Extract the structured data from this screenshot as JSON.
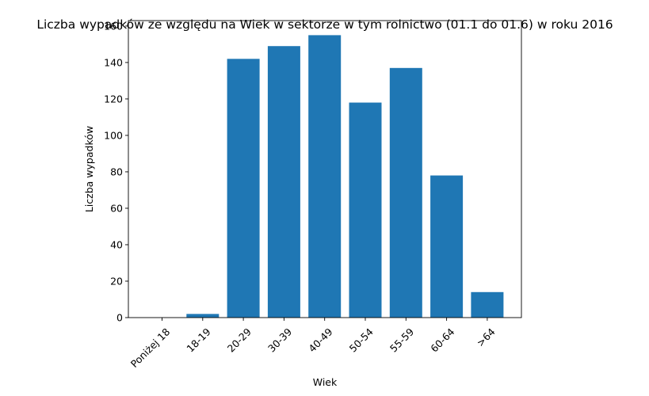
{
  "chart_data": {
    "type": "bar",
    "title": "Liczba wypadków ze względu na Wiek w sektorze    w tym rolnictwo (01.1 do 01.6) w roku 2016",
    "xlabel": "Wiek",
    "ylabel": "Liczba wypadków",
    "categories": [
      "Poniżej 18",
      "18-19",
      "20-29",
      "30-39",
      "40-49",
      "50-54",
      "55-59",
      "60-64",
      ">64"
    ],
    "values": [
      0,
      2,
      142,
      149,
      155,
      118,
      137,
      78,
      14
    ],
    "ylim": [
      0,
      163
    ],
    "yticks": [
      0,
      20,
      40,
      60,
      80,
      100,
      120,
      140,
      160
    ],
    "grid": false,
    "bar_color": "#1f77b4"
  }
}
